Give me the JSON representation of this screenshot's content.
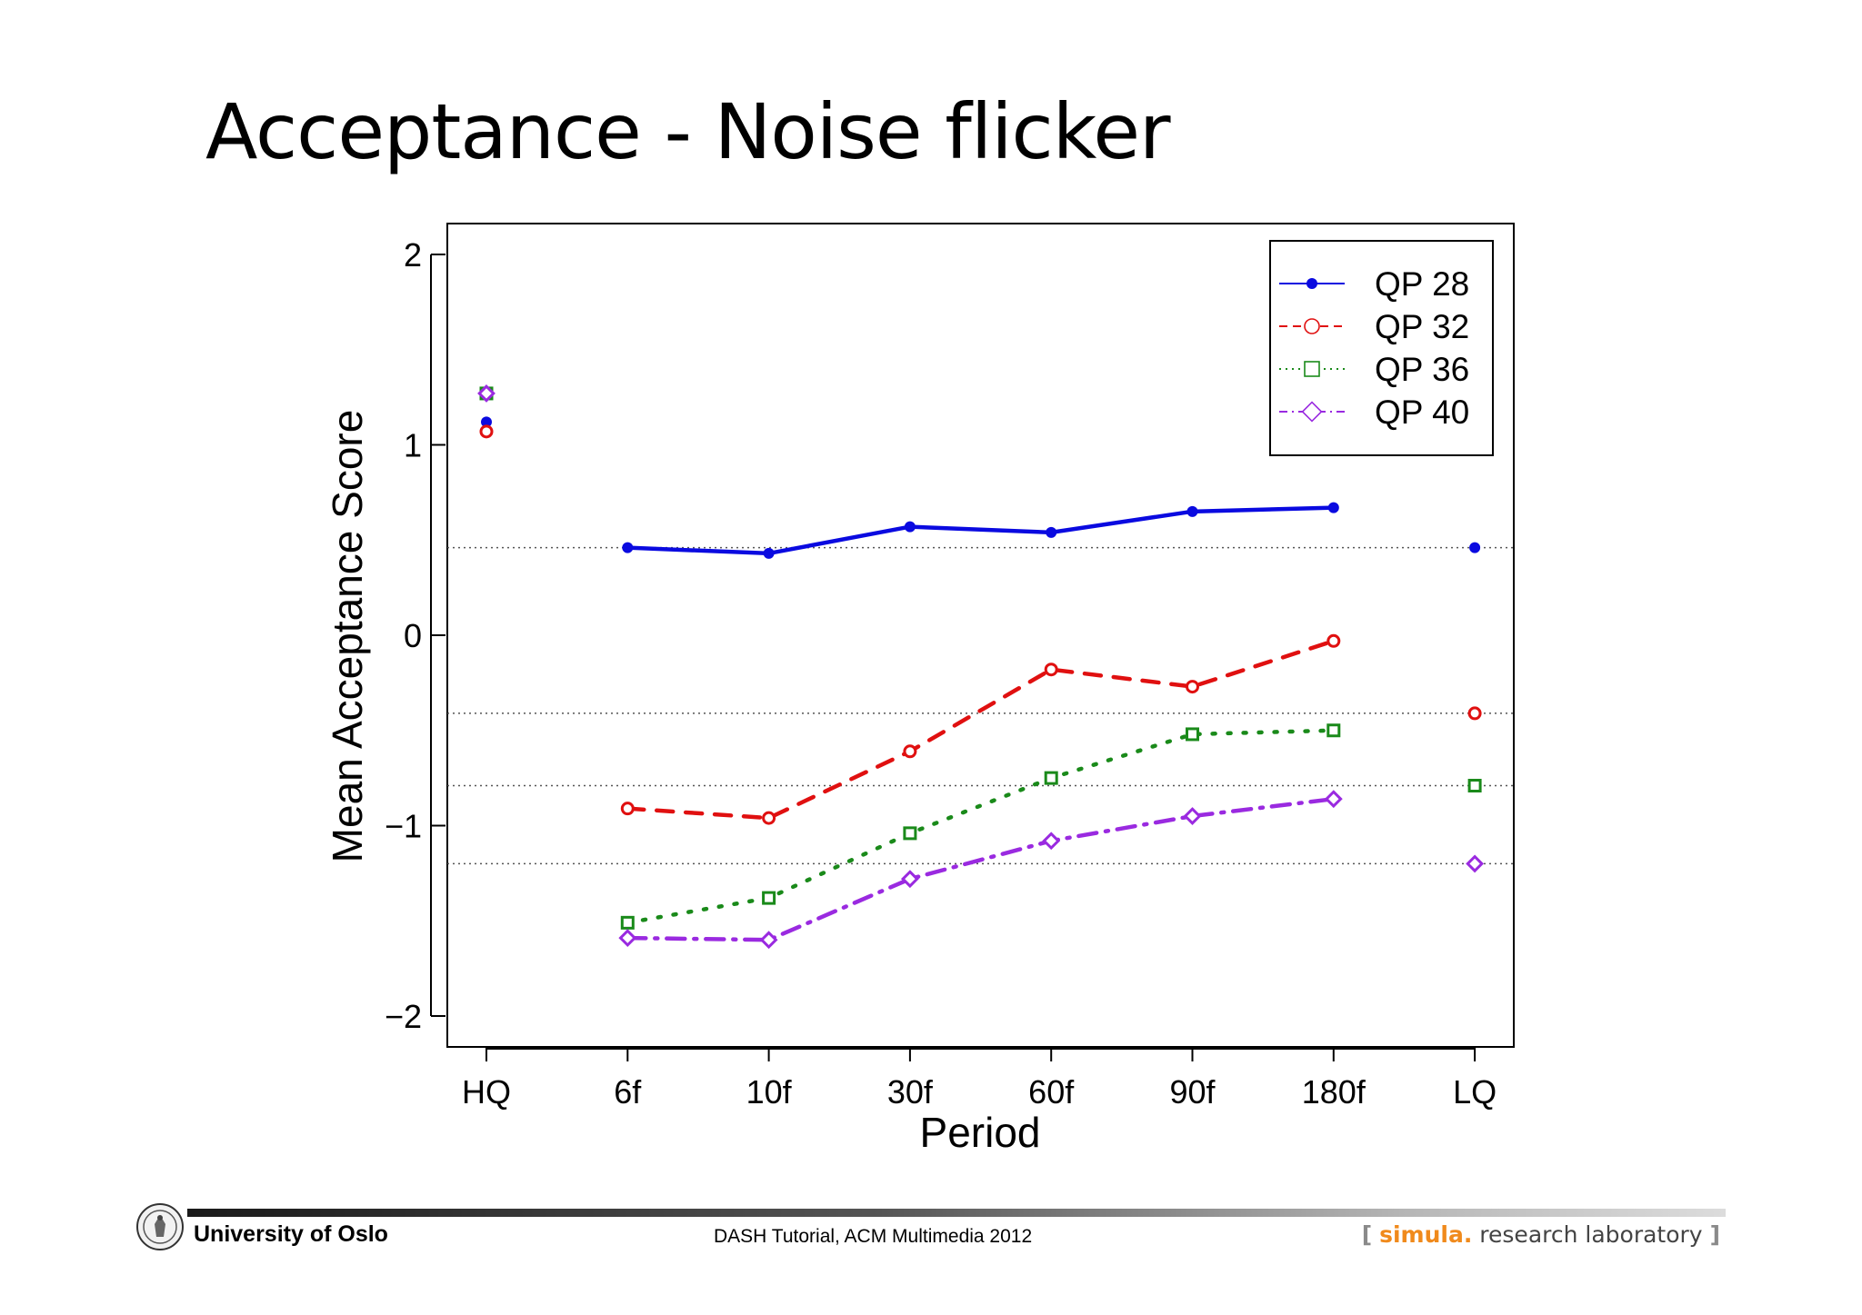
{
  "slide": {
    "title": "Acceptance - Noise flicker"
  },
  "footer": {
    "university": "University of Oslo",
    "center": "DASH Tutorial, ACM Multimedia 2012",
    "lab_open": "[",
    "lab_brand": "simula",
    "lab_dot": ".",
    "lab_rest": "research laboratory",
    "lab_close": "]"
  },
  "chart_data": {
    "type": "line",
    "title": "",
    "xlabel": "Period",
    "ylabel": "Mean Acceptance Score",
    "categories": [
      "HQ",
      "6f",
      "10f",
      "30f",
      "60f",
      "90f",
      "180f",
      "LQ"
    ],
    "ylim": [
      -2.15,
      2.15
    ],
    "yticks": [
      "2",
      "1",
      "0",
      "−1",
      "−2"
    ],
    "legend_position": "top-right",
    "reference_lines": "dotted horizontal lines at the LQ value of each series",
    "series": [
      {
        "name": "QP 28",
        "color": "#0a0ae0",
        "marker": "filled-circle",
        "line": "solid",
        "values": [
          1.12,
          0.46,
          0.43,
          0.57,
          0.54,
          0.65,
          0.67,
          0.46
        ]
      },
      {
        "name": "QP 32",
        "color": "#e01010",
        "marker": "open-circle",
        "line": "dashed",
        "values": [
          1.07,
          -0.91,
          -0.96,
          -0.61,
          -0.18,
          -0.27,
          -0.03,
          -0.41
        ]
      },
      {
        "name": "QP 36",
        "color": "#1a8a1a",
        "marker": "open-square",
        "line": "dotted",
        "values": [
          1.27,
          -1.51,
          -1.38,
          -1.04,
          -0.75,
          -0.52,
          -0.5,
          -0.79
        ]
      },
      {
        "name": "QP 40",
        "color": "#9a2ae0",
        "marker": "open-diamond",
        "line": "dash-dot",
        "values": [
          1.27,
          -1.59,
          -1.6,
          -1.28,
          -1.08,
          -0.95,
          -0.86,
          -1.2
        ]
      }
    ]
  }
}
